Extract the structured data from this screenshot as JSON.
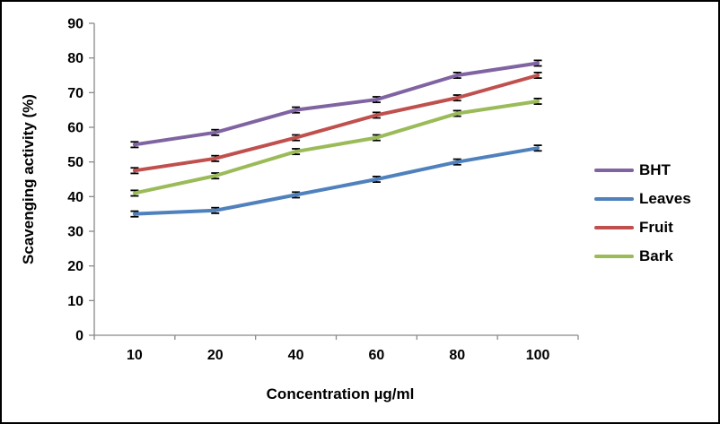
{
  "window": {
    "background_color": "#ffffff",
    "border_color": "#000000"
  },
  "chart_data": {
    "type": "line",
    "title": "",
    "xlabel": "Concentration µg/ml",
    "ylabel": "Scavenging activity (%)",
    "categories": [
      "10",
      "20",
      "40",
      "60",
      "80",
      "100"
    ],
    "y_ticks": [
      "0",
      "10",
      "20",
      "30",
      "40",
      "50",
      "60",
      "70",
      "80",
      "90"
    ],
    "ylim": [
      0,
      90
    ],
    "grid": false,
    "legend_position": "right",
    "error_bar_half_value": 0.8,
    "axis_color": "#898989",
    "error_bar_color": "#000000",
    "text_color": "#000000",
    "series": [
      {
        "name": "BHT",
        "color": "#8064A2",
        "values": [
          55,
          58.5,
          65,
          68,
          75,
          78.5
        ]
      },
      {
        "name": "Leaves",
        "color": "#4F81BD",
        "values": [
          35,
          36,
          40.5,
          45,
          50,
          54
        ]
      },
      {
        "name": "Fruit",
        "color": "#C0504D",
        "values": [
          47.5,
          51,
          57,
          63.5,
          68.5,
          75
        ]
      },
      {
        "name": "Bark",
        "color": "#9BBB59",
        "values": [
          41,
          46,
          53,
          57,
          64,
          67.5
        ]
      }
    ]
  }
}
